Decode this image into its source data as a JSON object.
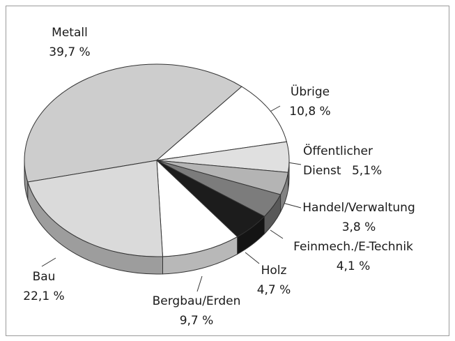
{
  "chart_data": {
    "type": "pie",
    "categories": [
      "Metall",
      "Übrige",
      "Öffentlicher Dienst",
      "Handel/Verwaltung",
      "Feinmech./E-Technik",
      "Holz",
      "Bergbau/Erden",
      "Bau"
    ],
    "values": [
      39.7,
      10.8,
      5.1,
      3.8,
      4.1,
      4.7,
      9.7,
      22.1
    ],
    "value_labels": [
      "39,7 %",
      "10,8 %",
      "5,1%",
      "3,8 %",
      "4,1 %",
      "4,7 %",
      "9,7 %",
      "22,1 %"
    ],
    "colors": [
      "#cdcdcd",
      "#ffffff",
      "#e0e0e0",
      "#b4b4b4",
      "#7c7c7c",
      "#1c1c1c",
      "#ffffff",
      "#dadada"
    ]
  }
}
